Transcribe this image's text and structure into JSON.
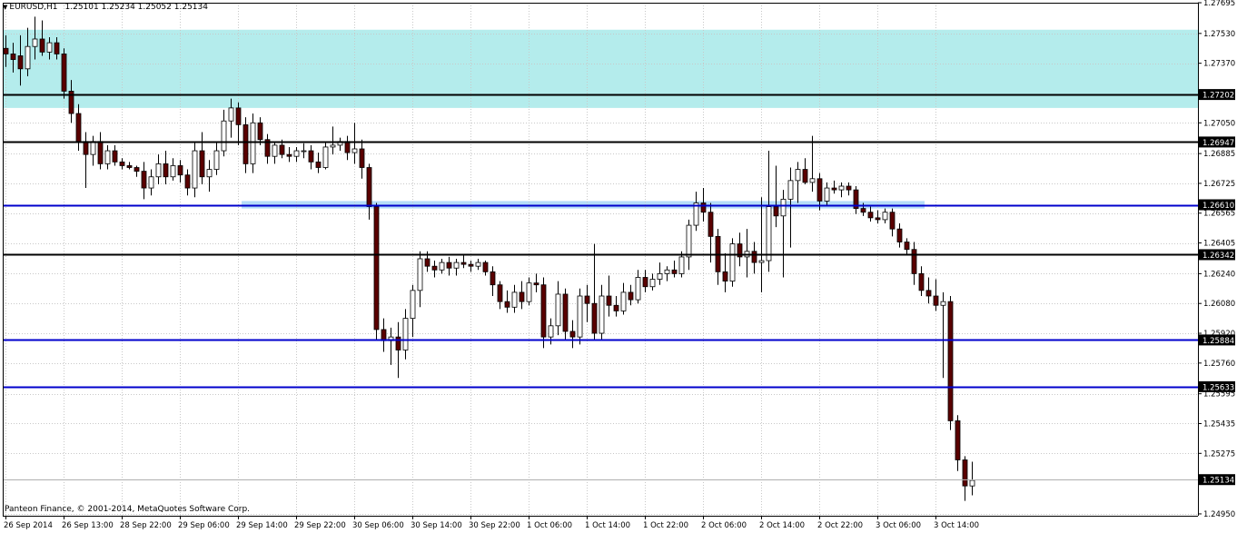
{
  "header": {
    "menu_icon": "triangle-down-icon",
    "symbol": "EURUSD,H1",
    "ohlc": "1.25101 1.25234 1.25052 1.25134"
  },
  "copyright": "Panteon Finance, © 2001-2014, MetaQuotes Software Corp.",
  "colors": {
    "background": "#ffffff",
    "grid": "#c8c8c8",
    "zone": "#b4ecec",
    "zone_mid": "#b4dcf8",
    "bull_body": "#ffffff",
    "bear_body": "#5a0000",
    "wick": "#000000",
    "level_black": "#000000",
    "level_blue": "#0000cc",
    "price_tag": "#000000"
  },
  "chart_data": {
    "type": "candlestick",
    "symbol": "EURUSD",
    "timeframe": "H1",
    "ylim": [
      1.2494,
      1.27695
    ],
    "y_ticks": [
      "1.27695",
      "1.27530",
      "1.27370",
      "1.27050",
      "1.26885",
      "1.26725",
      "1.26565",
      "1.26405",
      "1.26240",
      "1.26080",
      "1.25920",
      "1.25760",
      "1.25595",
      "1.25435",
      "1.25275",
      "1.24950"
    ],
    "x_labels": [
      "26 Sep 2014",
      "26 Sep 13:00",
      "28 Sep 22:00",
      "29 Sep 06:00",
      "29 Sep 14:00",
      "29 Sep 22:00",
      "30 Sep 06:00",
      "30 Sep 14:00",
      "30 Sep 22:00",
      "1 Oct 06:00",
      "1 Oct 14:00",
      "1 Oct 22:00",
      "2 Oct 06:00",
      "2 Oct 14:00",
      "2 Oct 22:00",
      "3 Oct 06:00",
      "3 Oct 14:00"
    ],
    "levels": [
      {
        "price": 1.27202,
        "label": "1.27202",
        "color": "black"
      },
      {
        "price": 1.26947,
        "label": "1.26947",
        "color": "black"
      },
      {
        "price": 1.2661,
        "label": "1.26610",
        "color": "blue"
      },
      {
        "price": 1.26342,
        "label": "1.26342",
        "color": "black"
      },
      {
        "price": 1.25884,
        "label": "1.25884",
        "color": "blue"
      },
      {
        "price": 1.25633,
        "label": "1.25633",
        "color": "blue"
      }
    ],
    "current_price": {
      "price": 1.25134,
      "label": "1.25134"
    },
    "zones": [
      {
        "from": 1.2713,
        "to": 1.2755,
        "color": "zone",
        "start_bar": 0,
        "end_bar": null
      },
      {
        "from": 1.2659,
        "to": 1.2663,
        "color": "zone_mid",
        "start_bar": 33,
        "end_bar": 126
      }
    ],
    "candles": [
      {
        "o": 1.2745,
        "h": 1.2752,
        "l": 1.2735,
        "c": 1.2742
      },
      {
        "o": 1.2742,
        "h": 1.2748,
        "l": 1.2732,
        "c": 1.2739
      },
      {
        "o": 1.2741,
        "h": 1.2752,
        "l": 1.2725,
        "c": 1.2734
      },
      {
        "o": 1.2734,
        "h": 1.2756,
        "l": 1.273,
        "c": 1.2746
      },
      {
        "o": 1.2746,
        "h": 1.2762,
        "l": 1.2739,
        "c": 1.275
      },
      {
        "o": 1.275,
        "h": 1.276,
        "l": 1.2741,
        "c": 1.2743
      },
      {
        "o": 1.2743,
        "h": 1.2751,
        "l": 1.2739,
        "c": 1.2748
      },
      {
        "o": 1.2748,
        "h": 1.2751,
        "l": 1.2739,
        "c": 1.2742
      },
      {
        "o": 1.2742,
        "h": 1.2745,
        "l": 1.2718,
        "c": 1.2722
      },
      {
        "o": 1.2722,
        "h": 1.2728,
        "l": 1.2705,
        "c": 1.271
      },
      {
        "o": 1.271,
        "h": 1.2715,
        "l": 1.269,
        "c": 1.2695
      },
      {
        "o": 1.2695,
        "h": 1.27,
        "l": 1.267,
        "c": 1.2688
      },
      {
        "o": 1.2688,
        "h": 1.2698,
        "l": 1.2682,
        "c": 1.2695
      },
      {
        "o": 1.2695,
        "h": 1.27,
        "l": 1.268,
        "c": 1.2683
      },
      {
        "o": 1.2683,
        "h": 1.2693,
        "l": 1.268,
        "c": 1.269
      },
      {
        "o": 1.269,
        "h": 1.2693,
        "l": 1.2682,
        "c": 1.2684
      },
      {
        "o": 1.2684,
        "h": 1.2686,
        "l": 1.268,
        "c": 1.2682
      },
      {
        "o": 1.2682,
        "h": 1.2684,
        "l": 1.268,
        "c": 1.2681
      },
      {
        "o": 1.2681,
        "h": 1.2682,
        "l": 1.2676,
        "c": 1.2679
      },
      {
        "o": 1.2679,
        "h": 1.2684,
        "l": 1.2664,
        "c": 1.267
      },
      {
        "o": 1.267,
        "h": 1.268,
        "l": 1.2666,
        "c": 1.2676
      },
      {
        "o": 1.2676,
        "h": 1.2688,
        "l": 1.2672,
        "c": 1.2683
      },
      {
        "o": 1.2683,
        "h": 1.269,
        "l": 1.2672,
        "c": 1.2676
      },
      {
        "o": 1.2676,
        "h": 1.2686,
        "l": 1.2674,
        "c": 1.2682
      },
      {
        "o": 1.2682,
        "h": 1.2685,
        "l": 1.2673,
        "c": 1.2677
      },
      {
        "o": 1.2677,
        "h": 1.268,
        "l": 1.2666,
        "c": 1.267
      },
      {
        "o": 1.267,
        "h": 1.2695,
        "l": 1.2665,
        "c": 1.269
      },
      {
        "o": 1.269,
        "h": 1.27,
        "l": 1.2672,
        "c": 1.2676
      },
      {
        "o": 1.2676,
        "h": 1.2685,
        "l": 1.2668,
        "c": 1.268
      },
      {
        "o": 1.268,
        "h": 1.2695,
        "l": 1.2677,
        "c": 1.269
      },
      {
        "o": 1.269,
        "h": 1.2712,
        "l": 1.2687,
        "c": 1.2706
      },
      {
        "o": 1.2706,
        "h": 1.2718,
        "l": 1.2697,
        "c": 1.2713
      },
      {
        "o": 1.2713,
        "h": 1.2716,
        "l": 1.2693,
        "c": 1.2704
      },
      {
        "o": 1.2704,
        "h": 1.2708,
        "l": 1.2678,
        "c": 1.2683
      },
      {
        "o": 1.2683,
        "h": 1.271,
        "l": 1.2678,
        "c": 1.2705
      },
      {
        "o": 1.2705,
        "h": 1.2708,
        "l": 1.2693,
        "c": 1.2696
      },
      {
        "o": 1.2696,
        "h": 1.2699,
        "l": 1.2683,
        "c": 1.2687
      },
      {
        "o": 1.2687,
        "h": 1.2695,
        "l": 1.2683,
        "c": 1.2693
      },
      {
        "o": 1.2693,
        "h": 1.2696,
        "l": 1.2686,
        "c": 1.2688
      },
      {
        "o": 1.2688,
        "h": 1.2692,
        "l": 1.2684,
        "c": 1.2687
      },
      {
        "o": 1.2687,
        "h": 1.2692,
        "l": 1.2684,
        "c": 1.269
      },
      {
        "o": 1.269,
        "h": 1.2694,
        "l": 1.2686,
        "c": 1.269
      },
      {
        "o": 1.269,
        "h": 1.2693,
        "l": 1.268,
        "c": 1.2684
      },
      {
        "o": 1.2684,
        "h": 1.2689,
        "l": 1.2678,
        "c": 1.2681
      },
      {
        "o": 1.2681,
        "h": 1.2695,
        "l": 1.268,
        "c": 1.2692
      },
      {
        "o": 1.2692,
        "h": 1.2703,
        "l": 1.2688,
        "c": 1.2693
      },
      {
        "o": 1.2693,
        "h": 1.2697,
        "l": 1.269,
        "c": 1.2695
      },
      {
        "o": 1.2695,
        "h": 1.2698,
        "l": 1.2685,
        "c": 1.2689
      },
      {
        "o": 1.2689,
        "h": 1.2705,
        "l": 1.2683,
        "c": 1.2691
      },
      {
        "o": 1.2691,
        "h": 1.2696,
        "l": 1.2675,
        "c": 1.2681
      },
      {
        "o": 1.2681,
        "h": 1.2683,
        "l": 1.2653,
        "c": 1.266
      },
      {
        "o": 1.266,
        "h": 1.2662,
        "l": 1.2588,
        "c": 1.2594
      },
      {
        "o": 1.2594,
        "h": 1.26,
        "l": 1.2582,
        "c": 1.2588
      },
      {
        "o": 1.2588,
        "h": 1.2595,
        "l": 1.2575,
        "c": 1.259
      },
      {
        "o": 1.259,
        "h": 1.2598,
        "l": 1.2568,
        "c": 1.2583
      },
      {
        "o": 1.2583,
        "h": 1.2605,
        "l": 1.2578,
        "c": 1.26
      },
      {
        "o": 1.26,
        "h": 1.2618,
        "l": 1.259,
        "c": 1.2615
      },
      {
        "o": 1.2615,
        "h": 1.2636,
        "l": 1.2606,
        "c": 1.2632
      },
      {
        "o": 1.2632,
        "h": 1.2636,
        "l": 1.2625,
        "c": 1.2628
      },
      {
        "o": 1.2628,
        "h": 1.2631,
        "l": 1.2622,
        "c": 1.2626
      },
      {
        "o": 1.2626,
        "h": 1.2632,
        "l": 1.2624,
        "c": 1.263
      },
      {
        "o": 1.263,
        "h": 1.2633,
        "l": 1.2623,
        "c": 1.2627
      },
      {
        "o": 1.2627,
        "h": 1.2632,
        "l": 1.2623,
        "c": 1.263
      },
      {
        "o": 1.263,
        "h": 1.2634,
        "l": 1.2627,
        "c": 1.2629
      },
      {
        "o": 1.2629,
        "h": 1.2631,
        "l": 1.2625,
        "c": 1.2628
      },
      {
        "o": 1.2628,
        "h": 1.2632,
        "l": 1.2626,
        "c": 1.263
      },
      {
        "o": 1.263,
        "h": 1.2631,
        "l": 1.2623,
        "c": 1.2625
      },
      {
        "o": 1.2625,
        "h": 1.2628,
        "l": 1.2612,
        "c": 1.2618
      },
      {
        "o": 1.2618,
        "h": 1.262,
        "l": 1.2605,
        "c": 1.2609
      },
      {
        "o": 1.2609,
        "h": 1.2615,
        "l": 1.2603,
        "c": 1.2606
      },
      {
        "o": 1.2606,
        "h": 1.2618,
        "l": 1.2603,
        "c": 1.2614
      },
      {
        "o": 1.2614,
        "h": 1.262,
        "l": 1.2605,
        "c": 1.2609
      },
      {
        "o": 1.2609,
        "h": 1.2622,
        "l": 1.2607,
        "c": 1.2619
      },
      {
        "o": 1.2619,
        "h": 1.2624,
        "l": 1.2614,
        "c": 1.2618
      },
      {
        "o": 1.2618,
        "h": 1.2622,
        "l": 1.2584,
        "c": 1.259
      },
      {
        "o": 1.259,
        "h": 1.26,
        "l": 1.2586,
        "c": 1.2596
      },
      {
        "o": 1.2596,
        "h": 1.262,
        "l": 1.2591,
        "c": 1.2613
      },
      {
        "o": 1.2613,
        "h": 1.2616,
        "l": 1.2588,
        "c": 1.2593
      },
      {
        "o": 1.2593,
        "h": 1.2599,
        "l": 1.2584,
        "c": 1.259
      },
      {
        "o": 1.259,
        "h": 1.2616,
        "l": 1.2586,
        "c": 1.2612
      },
      {
        "o": 1.2612,
        "h": 1.2618,
        "l": 1.2598,
        "c": 1.2608
      },
      {
        "o": 1.2608,
        "h": 1.264,
        "l": 1.2588,
        "c": 1.2592
      },
      {
        "o": 1.2592,
        "h": 1.2618,
        "l": 1.2588,
        "c": 1.2612
      },
      {
        "o": 1.2612,
        "h": 1.2623,
        "l": 1.2601,
        "c": 1.2607
      },
      {
        "o": 1.2607,
        "h": 1.2612,
        "l": 1.2601,
        "c": 1.2604
      },
      {
        "o": 1.2604,
        "h": 1.2619,
        "l": 1.2602,
        "c": 1.2614
      },
      {
        "o": 1.2614,
        "h": 1.2618,
        "l": 1.2607,
        "c": 1.261
      },
      {
        "o": 1.261,
        "h": 1.2626,
        "l": 1.2608,
        "c": 1.2622
      },
      {
        "o": 1.2622,
        "h": 1.2626,
        "l": 1.2614,
        "c": 1.2617
      },
      {
        "o": 1.2617,
        "h": 1.2624,
        "l": 1.2615,
        "c": 1.2621
      },
      {
        "o": 1.2621,
        "h": 1.263,
        "l": 1.2618,
        "c": 1.2624
      },
      {
        "o": 1.2624,
        "h": 1.2628,
        "l": 1.262,
        "c": 1.2626
      },
      {
        "o": 1.2626,
        "h": 1.2631,
        "l": 1.2622,
        "c": 1.2624
      },
      {
        "o": 1.2624,
        "h": 1.2636,
        "l": 1.2622,
        "c": 1.2633
      },
      {
        "o": 1.2633,
        "h": 1.2653,
        "l": 1.2626,
        "c": 1.265
      },
      {
        "o": 1.265,
        "h": 1.2668,
        "l": 1.2647,
        "c": 1.2662
      },
      {
        "o": 1.2662,
        "h": 1.267,
        "l": 1.2652,
        "c": 1.2657
      },
      {
        "o": 1.2657,
        "h": 1.2662,
        "l": 1.263,
        "c": 1.2644
      },
      {
        "o": 1.2644,
        "h": 1.2648,
        "l": 1.2618,
        "c": 1.2625
      },
      {
        "o": 1.2625,
        "h": 1.2635,
        "l": 1.2614,
        "c": 1.262
      },
      {
        "o": 1.262,
        "h": 1.2643,
        "l": 1.2617,
        "c": 1.264
      },
      {
        "o": 1.264,
        "h": 1.2646,
        "l": 1.2628,
        "c": 1.2633
      },
      {
        "o": 1.2633,
        "h": 1.2648,
        "l": 1.2622,
        "c": 1.2636
      },
      {
        "o": 1.2636,
        "h": 1.2641,
        "l": 1.2624,
        "c": 1.263
      },
      {
        "o": 1.263,
        "h": 1.2665,
        "l": 1.2614,
        "c": 1.2631
      },
      {
        "o": 1.2631,
        "h": 1.269,
        "l": 1.2625,
        "c": 1.266
      },
      {
        "o": 1.266,
        "h": 1.2682,
        "l": 1.2649,
        "c": 1.2655
      },
      {
        "o": 1.2655,
        "h": 1.2669,
        "l": 1.2622,
        "c": 1.2664
      },
      {
        "o": 1.2664,
        "h": 1.2681,
        "l": 1.2638,
        "c": 1.2674
      },
      {
        "o": 1.2674,
        "h": 1.2684,
        "l": 1.2662,
        "c": 1.268
      },
      {
        "o": 1.268,
        "h": 1.2686,
        "l": 1.2672,
        "c": 1.2673
      },
      {
        "o": 1.2673,
        "h": 1.2698,
        "l": 1.2668,
        "c": 1.2675
      },
      {
        "o": 1.2675,
        "h": 1.2678,
        "l": 1.2658,
        "c": 1.2663
      },
      {
        "o": 1.2663,
        "h": 1.2673,
        "l": 1.2661,
        "c": 1.267
      },
      {
        "o": 1.267,
        "h": 1.2674,
        "l": 1.2667,
        "c": 1.2669
      },
      {
        "o": 1.2669,
        "h": 1.2673,
        "l": 1.2665,
        "c": 1.2671
      },
      {
        "o": 1.2671,
        "h": 1.2673,
        "l": 1.2666,
        "c": 1.2669
      },
      {
        "o": 1.2669,
        "h": 1.2671,
        "l": 1.2656,
        "c": 1.2659
      },
      {
        "o": 1.2659,
        "h": 1.2662,
        "l": 1.2655,
        "c": 1.2657
      },
      {
        "o": 1.2657,
        "h": 1.266,
        "l": 1.2652,
        "c": 1.2654
      },
      {
        "o": 1.2654,
        "h": 1.2658,
        "l": 1.2651,
        "c": 1.2653
      },
      {
        "o": 1.2653,
        "h": 1.2659,
        "l": 1.2651,
        "c": 1.2657
      },
      {
        "o": 1.2657,
        "h": 1.2659,
        "l": 1.2644,
        "c": 1.2648
      },
      {
        "o": 1.2648,
        "h": 1.2651,
        "l": 1.2638,
        "c": 1.2641
      },
      {
        "o": 1.2641,
        "h": 1.2643,
        "l": 1.2634,
        "c": 1.2637
      },
      {
        "o": 1.2637,
        "h": 1.2641,
        "l": 1.2618,
        "c": 1.2624
      },
      {
        "o": 1.2624,
        "h": 1.2628,
        "l": 1.2612,
        "c": 1.2615
      },
      {
        "o": 1.2615,
        "h": 1.2622,
        "l": 1.2608,
        "c": 1.2612
      },
      {
        "o": 1.2612,
        "h": 1.2621,
        "l": 1.2604,
        "c": 1.2607
      },
      {
        "o": 1.2607,
        "h": 1.2614,
        "l": 1.2568,
        "c": 1.2609
      },
      {
        "o": 1.2609,
        "h": 1.2612,
        "l": 1.254,
        "c": 1.2545
      },
      {
        "o": 1.2545,
        "h": 1.2548,
        "l": 1.2518,
        "c": 1.2524
      },
      {
        "o": 1.2524,
        "h": 1.2526,
        "l": 1.2502,
        "c": 1.251
      },
      {
        "o": 1.251,
        "h": 1.2523,
        "l": 1.2505,
        "c": 1.2513
      }
    ]
  }
}
